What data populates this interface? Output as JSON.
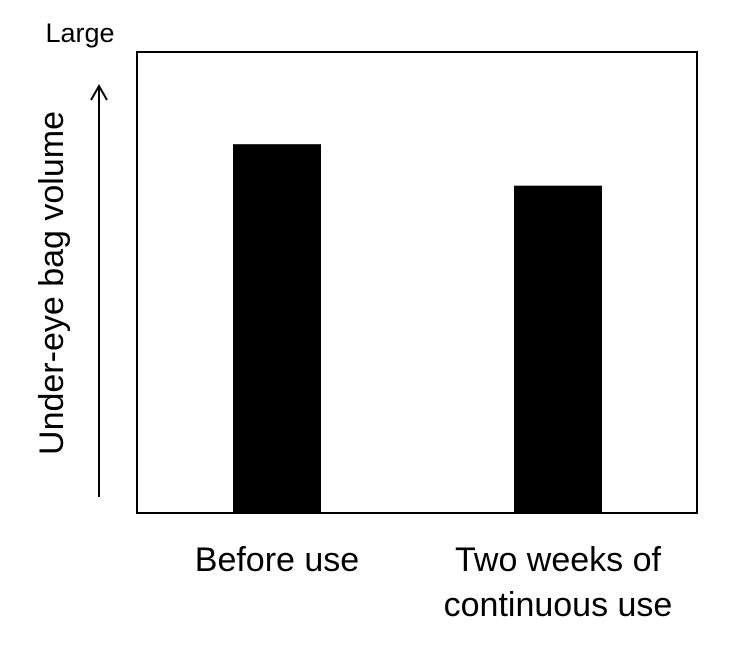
{
  "chart_data": {
    "type": "bar",
    "categories": [
      [
        "Before use"
      ],
      [
        "Two weeks of",
        "continuous use"
      ]
    ],
    "values": [
      80,
      71
    ],
    "ylim": [
      0,
      100
    ],
    "ylabel": "Under-eye bag volume",
    "yaxis_top_label": "Large",
    "grid": false,
    "bar_color": "#000000"
  }
}
